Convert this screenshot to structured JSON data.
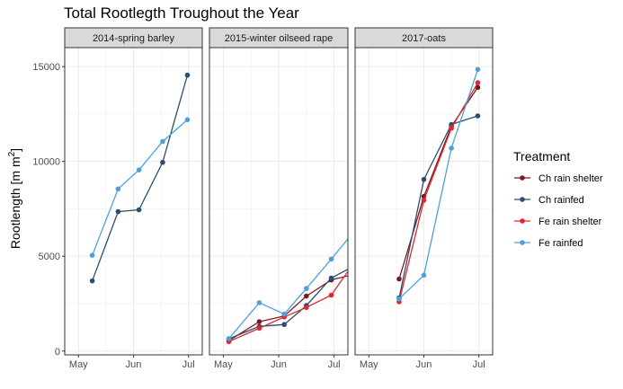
{
  "chart_data": {
    "type": "line",
    "title": "Total Rootlegth Troughout the Year",
    "ylabel": "Rootlength [m  m",
    "ylabel_sup": "2",
    "ylabel_close": "]",
    "ylim": [
      -200,
      16000
    ],
    "yticks": [
      0,
      5000,
      10000,
      15000
    ],
    "ytick_labels": [
      "0",
      "5000",
      "10000",
      "15000"
    ],
    "x_domain": [
      0.75,
      3.25
    ],
    "xticks": [
      1,
      2,
      3
    ],
    "xtick_labels": [
      "May",
      "Jun",
      "Jul"
    ],
    "grid": true,
    "legend": {
      "title": "Treatment",
      "position": "right",
      "entries": [
        "Ch rain shelter",
        "Ch rainfed",
        "Fe rain shelter",
        "Fe rainfed"
      ]
    },
    "colors": {
      "Ch rain shelter": "#7a1a1e",
      "Ch rainfed": "#2b4f6e",
      "Fe rain shelter": "#e0262e",
      "Fe rainfed": "#4f9fdb"
    },
    "panels": [
      {
        "strip": "2014-spring barley",
        "series": [
          {
            "name": "Ch rainfed",
            "x": [
              1.25,
              1.72,
              2.1,
              2.53,
              2.98
            ],
            "y": [
              3700,
              7350,
              7450,
              9950,
              14550
            ]
          },
          {
            "name": "Fe rainfed",
            "x": [
              1.25,
              1.72,
              2.1,
              2.53,
              2.98
            ],
            "y": [
              5050,
              8550,
              9550,
              11050,
              12200
            ]
          }
        ]
      },
      {
        "strip": "2015-winter oilseed rape",
        "series": [
          {
            "name": "Ch rain shelter",
            "x": [
              1.1,
              1.65,
              2.1,
              2.5,
              2.95,
              3.5
            ],
            "y": [
              550,
              1550,
              1850,
              2900,
              3750,
              4150
            ]
          },
          {
            "name": "Ch rainfed",
            "x": [
              1.1,
              1.65,
              2.1,
              2.5,
              2.95,
              3.5
            ],
            "y": [
              650,
              1300,
              1400,
              2400,
              3850,
              4700
            ]
          },
          {
            "name": "Fe rain shelter",
            "x": [
              1.1,
              1.65,
              2.1,
              2.5,
              2.95,
              3.5
            ],
            "y": [
              500,
              1200,
              1800,
              2300,
              2950,
              5250
            ]
          },
          {
            "name": "Fe rainfed",
            "x": [
              1.1,
              1.65,
              2.1,
              2.5,
              2.95,
              3.5
            ],
            "y": [
              650,
              2550,
              1950,
              3300,
              4850,
              6800
            ]
          }
        ]
      },
      {
        "strip": "2017-oats",
        "series": [
          {
            "name": "Ch rain shelter",
            "x": [
              1.55,
              2.0,
              2.5,
              2.98
            ],
            "y": [
              3800,
              8150,
              11850,
              13900
            ]
          },
          {
            "name": "Ch rainfed",
            "x": [
              1.55,
              2.0,
              2.5,
              2.98
            ],
            "y": [
              2800,
              9050,
              11950,
              12400
            ]
          },
          {
            "name": "Fe rain shelter",
            "x": [
              1.55,
              2.0,
              2.5,
              2.98
            ],
            "y": [
              2600,
              7950,
              11750,
              14150
            ]
          },
          {
            "name": "Fe rainfed",
            "x": [
              1.55,
              2.0,
              2.5,
              2.98
            ],
            "y": [
              2750,
              4000,
              10700,
              14850
            ]
          }
        ]
      }
    ]
  }
}
